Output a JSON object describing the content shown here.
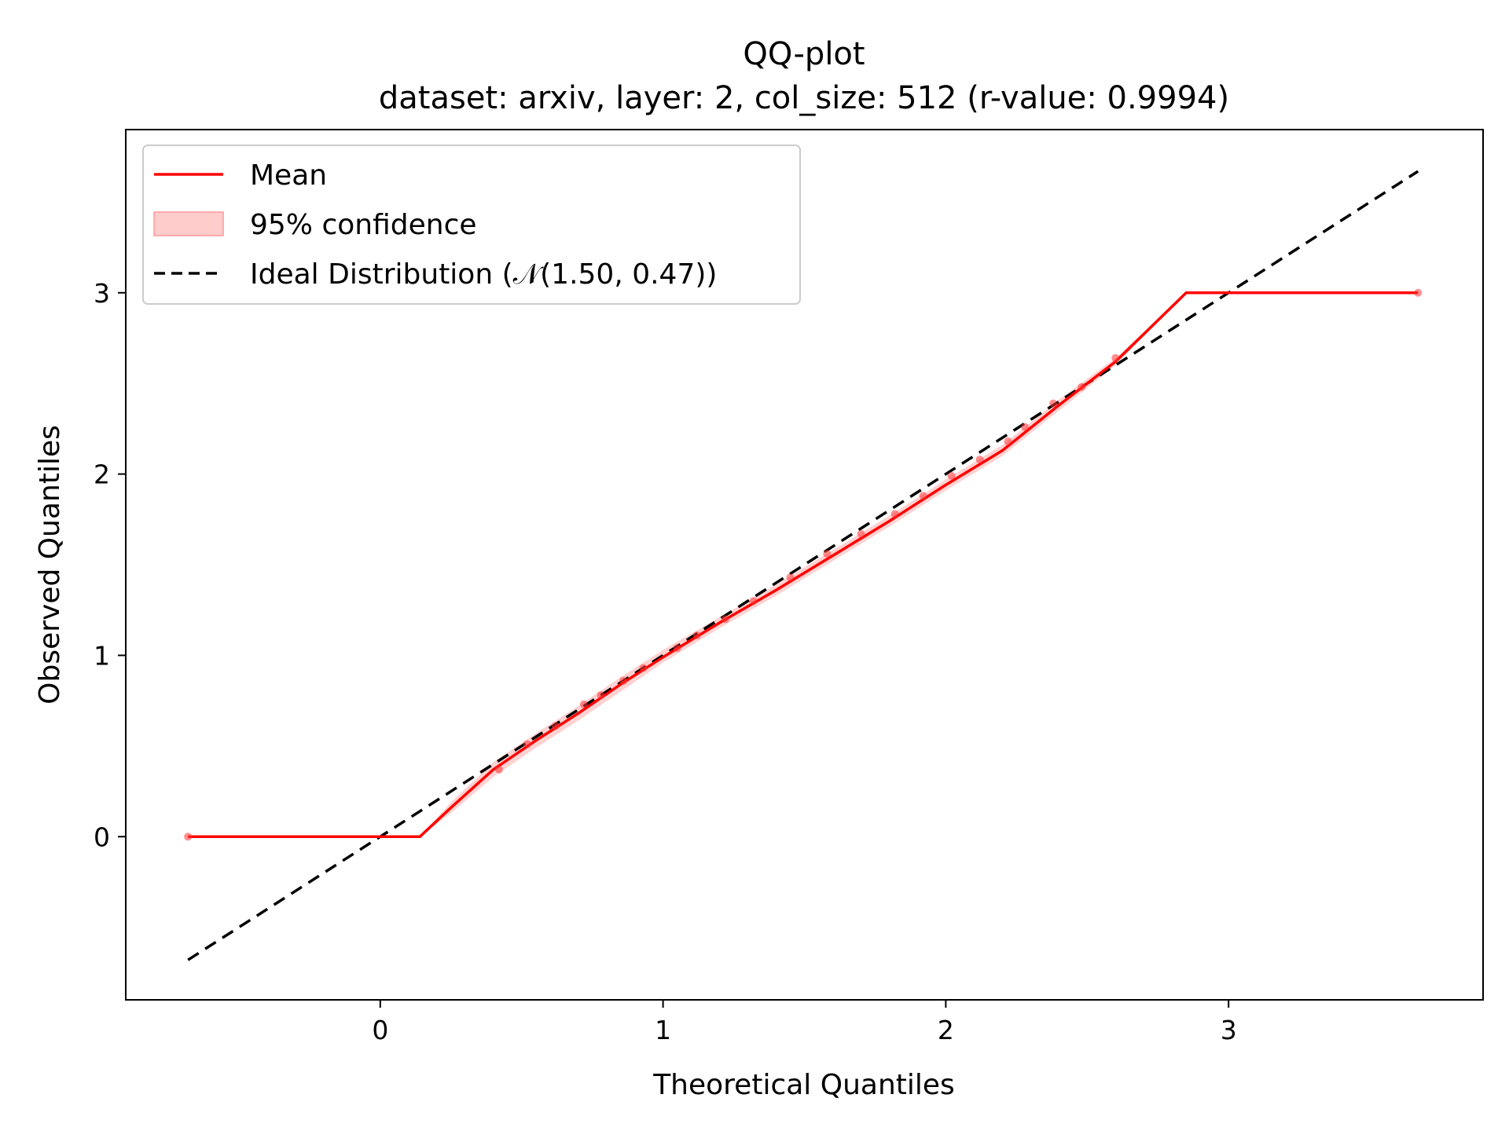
{
  "chart_data": {
    "type": "line",
    "title": "QQ-plot",
    "subtitle": "dataset: arxiv, layer: 2, col_size: 512 (r-value: 0.9994)",
    "xlabel": "Theoretical Quantiles",
    "ylabel": "Observed Quantiles",
    "xlim": [
      -0.9,
      3.9
    ],
    "ylim": [
      -0.9,
      3.9
    ],
    "xticks": [
      0,
      1,
      2,
      3
    ],
    "yticks": [
      0,
      1,
      2,
      3
    ],
    "grid": false,
    "legend_position": "upper-left",
    "series": [
      {
        "name": "Mean",
        "style": "solid",
        "color": "#ff0000",
        "x": [
          -0.68,
          0.14,
          0.25,
          0.4,
          0.55,
          0.7,
          0.85,
          1.0,
          1.2,
          1.4,
          1.6,
          1.8,
          2.0,
          2.2,
          2.4,
          2.6,
          2.85,
          3.67
        ],
        "y": [
          0.0,
          0.0,
          0.16,
          0.37,
          0.53,
          0.68,
          0.84,
          0.99,
          1.18,
          1.36,
          1.55,
          1.74,
          1.94,
          2.13,
          2.38,
          2.62,
          3.0,
          3.0
        ]
      },
      {
        "name": "95% confidence",
        "type": "band",
        "color": "#ffcccc",
        "x": [
          -0.68,
          0.14,
          0.25,
          0.4,
          0.55,
          0.7,
          0.85,
          1.0,
          1.2,
          1.4,
          1.6,
          1.8,
          2.0,
          2.2,
          2.4,
          2.6,
          2.85,
          3.67
        ],
        "lower": [
          0.0,
          0.0,
          0.13,
          0.33,
          0.49,
          0.64,
          0.8,
          0.96,
          1.15,
          1.33,
          1.52,
          1.71,
          1.91,
          2.1,
          2.35,
          2.6,
          3.0,
          3.0
        ],
        "upper": [
          0.0,
          0.0,
          0.19,
          0.41,
          0.57,
          0.72,
          0.88,
          1.03,
          1.21,
          1.39,
          1.58,
          1.77,
          1.97,
          2.16,
          2.41,
          2.64,
          3.0,
          3.0
        ]
      },
      {
        "name": "Ideal Distribution (𝒩(1.50, 0.47))",
        "style": "dashed",
        "color": "#000000",
        "x": [
          -0.68,
          3.67
        ],
        "y": [
          -0.68,
          3.67
        ]
      }
    ],
    "points": {
      "color": "#ff3333",
      "x": [
        -0.68,
        0.42,
        0.52,
        0.62,
        0.72,
        0.78,
        0.86,
        0.93,
        1.05,
        1.12,
        1.22,
        1.32,
        1.45,
        1.58,
        1.7,
        1.82,
        1.92,
        2.02,
        2.12,
        2.22,
        2.28,
        2.38,
        2.48,
        2.6,
        3.67
      ],
      "y": [
        0.0,
        0.37,
        0.51,
        0.61,
        0.73,
        0.78,
        0.86,
        0.93,
        1.04,
        1.11,
        1.2,
        1.3,
        1.43,
        1.56,
        1.67,
        1.78,
        1.88,
        1.99,
        2.08,
        2.18,
        2.26,
        2.39,
        2.48,
        2.64,
        3.0
      ]
    }
  }
}
